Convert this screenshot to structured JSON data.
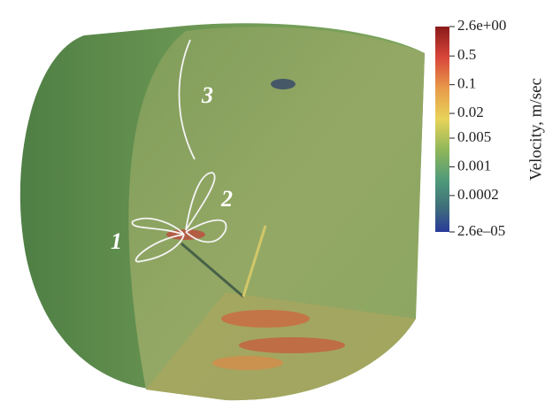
{
  "annotations": {
    "labels": [
      "1",
      "2",
      "3"
    ]
  },
  "colorbar": {
    "title": "Velocity, m/sec",
    "scale": "log",
    "range": [
      2.6e-05,
      2.6
    ],
    "ticks": [
      {
        "value": 2.6,
        "label": "2.6e+00"
      },
      0.5,
      0.1,
      0.02,
      0.005,
      0.001,
      0.0002,
      {
        "value": 2.6e-05,
        "label": "2.6e–05"
      }
    ]
  }
}
